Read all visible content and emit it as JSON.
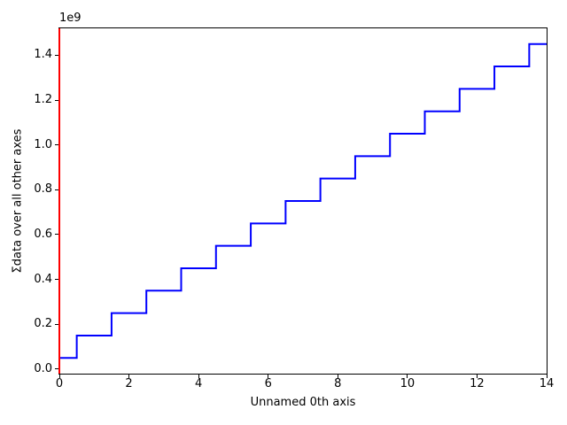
{
  "figure": {
    "background_color": "#ffffff",
    "spine_color": "#000000"
  },
  "chart_data": {
    "type": "line",
    "drawstyle": "steps-mid",
    "title": "",
    "xlabel": "Unnamed 0th axis",
    "ylabel": "Σdata over all other axes",
    "y_offset_label": "1e9",
    "line_color": "#0000ff",
    "line_width": 2,
    "grid": false,
    "legend": null,
    "x": [
      0,
      1,
      2,
      3,
      4,
      5,
      6,
      7,
      8,
      9,
      10,
      11,
      12,
      13,
      14
    ],
    "y": [
      50000000,
      150000000,
      250000000,
      350000000,
      450000000,
      550000000,
      650000000,
      750000000,
      850000000,
      950000000,
      1050000000,
      1150000000,
      1250000000,
      1350000000,
      1450000000
    ],
    "xlim": [
      0,
      14
    ],
    "ylim": [
      -20000000,
      1520000000
    ],
    "xticks": {
      "values": [
        0,
        2,
        4,
        6,
        8,
        10,
        12,
        14
      ],
      "labels": [
        "0",
        "2",
        "4",
        "6",
        "8",
        "10",
        "12",
        "14"
      ]
    },
    "yticks": {
      "values": [
        0,
        200000000,
        400000000,
        600000000,
        800000000,
        1000000000,
        1200000000,
        1400000000
      ],
      "labels": [
        "0.0",
        "0.2",
        "0.4",
        "0.6",
        "0.8",
        "1.0",
        "1.2",
        "1.4"
      ]
    },
    "annotations": {
      "vline": {
        "x": 0,
        "color": "#ff0000"
      }
    }
  }
}
